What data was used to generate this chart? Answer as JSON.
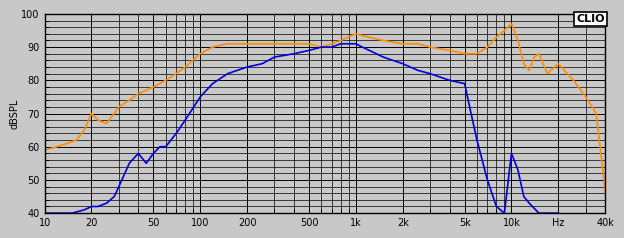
{
  "title": "",
  "ylabel": "dBSPL",
  "xlabel": "",
  "xlim": [
    10,
    40000
  ],
  "ylim": [
    40,
    100
  ],
  "yticks": [
    40,
    50,
    60,
    70,
    80,
    90,
    100
  ],
  "xtick_positions": [
    10,
    20,
    50,
    100,
    200,
    500,
    1000,
    2000,
    5000,
    10000,
    20000,
    40000
  ],
  "xtick_labels": [
    "10",
    "20",
    "50",
    "100",
    "200",
    "500",
    "1k",
    "2k",
    "5k",
    "10k",
    "Hz",
    "40k"
  ],
  "clio_label": "CLIO",
  "bg_color": "#c8c8c8",
  "plot_bg_color": "#c8c8c8",
  "grid_color": "#000000",
  "orange_color": "#ff8c00",
  "blue_color": "#0000dd",
  "orange_x": [
    10,
    12,
    14,
    16,
    18,
    20,
    22,
    25,
    28,
    30,
    35,
    40,
    45,
    50,
    60,
    70,
    80,
    100,
    120,
    150,
    200,
    250,
    300,
    400,
    500,
    600,
    700,
    800,
    1000,
    1200,
    1500,
    2000,
    2500,
    3000,
    4000,
    5000,
    6000,
    7000,
    8000,
    9000,
    10000,
    11000,
    12000,
    13000,
    14000,
    15000,
    17000,
    20000,
    25000,
    30000,
    35000,
    40000
  ],
  "orange_y": [
    59,
    60,
    61,
    62,
    65,
    70,
    68,
    67,
    70,
    72,
    74,
    76,
    77,
    78,
    80,
    82,
    84,
    88,
    90,
    91,
    91,
    91,
    91,
    91,
    91,
    90,
    91,
    92,
    94,
    93,
    92,
    91,
    91,
    90,
    89,
    88,
    88,
    90,
    93,
    95,
    97,
    92,
    85,
    83,
    87,
    88,
    82,
    85,
    80,
    75,
    70,
    47
  ],
  "blue_x": [
    10,
    15,
    18,
    20,
    22,
    25,
    28,
    30,
    35,
    40,
    45,
    50,
    55,
    60,
    70,
    80,
    100,
    120,
    150,
    200,
    250,
    300,
    400,
    500,
    600,
    700,
    800,
    900,
    1000,
    1100,
    1500,
    2000,
    2500,
    3000,
    4000,
    5000,
    5500,
    6000,
    7000,
    8000,
    9000,
    10000,
    11000,
    12000,
    13000,
    15000,
    17000,
    20000
  ],
  "blue_y": [
    40,
    40,
    41,
    42,
    42,
    43,
    45,
    48,
    55,
    58,
    55,
    58,
    60,
    60,
    64,
    68,
    75,
    79,
    82,
    84,
    85,
    87,
    88,
    89,
    90,
    90,
    91,
    91,
    91,
    90,
    87,
    85,
    83,
    82,
    80,
    79,
    70,
    62,
    50,
    42,
    40,
    58,
    53,
    45,
    43,
    40,
    40,
    40
  ]
}
